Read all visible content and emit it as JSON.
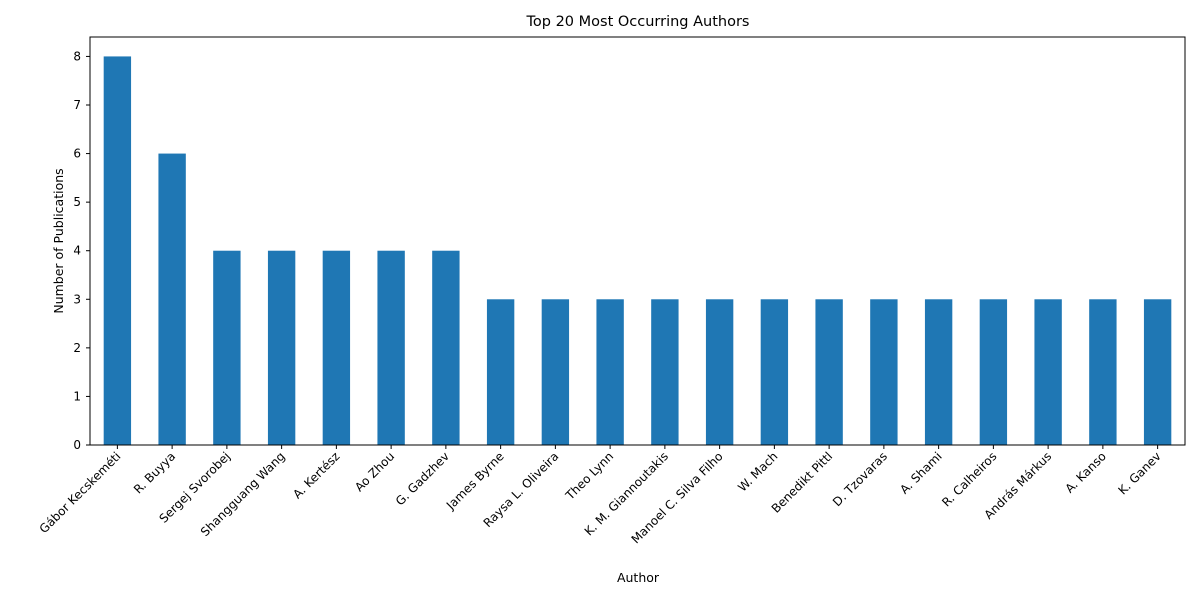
{
  "chart_data": {
    "type": "bar",
    "title": "Top 20 Most Occurring Authors",
    "xlabel": "Author",
    "ylabel": "Number of Publications",
    "categories": [
      "Gábor Kecskeméti",
      "R. Buyya",
      "Sergej Svorobej",
      "Shangguang Wang",
      "A. Kertész",
      "Ao Zhou",
      "G. Gadzhev",
      "James Byrne",
      "Raysa L. Oliveira",
      "Theo Lynn",
      "K. M. Giannoutakis",
      "Manoel C. Silva Filho",
      "W. Mach",
      "Benedikt Pittl",
      "D. Tzovaras",
      "A. Shami",
      "R. Calheiros",
      "András Márkus",
      "A. Kanso",
      "K. Ganev"
    ],
    "values": [
      8,
      6,
      4,
      4,
      4,
      4,
      4,
      3,
      3,
      3,
      3,
      3,
      3,
      3,
      3,
      3,
      3,
      3,
      3,
      3
    ],
    "yticks": [
      "0",
      "1",
      "2",
      "3",
      "4",
      "5",
      "6",
      "7",
      "8"
    ],
    "ylim": [
      0,
      8.4
    ],
    "grid": false,
    "legend": "none",
    "bar_color": "#1f77b4"
  }
}
